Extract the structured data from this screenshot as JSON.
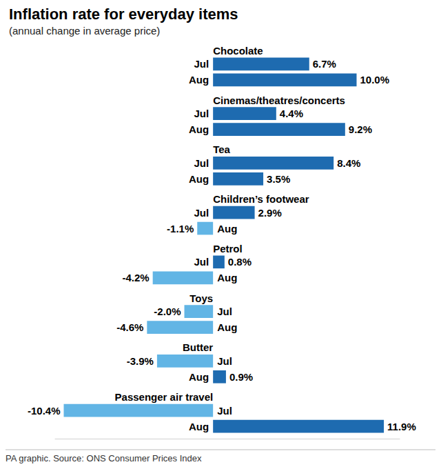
{
  "chart_data": {
    "type": "bar",
    "orientation": "horizontal",
    "title": "Inflation rate for everyday items",
    "subtitle": "(annual change in average price)",
    "source": "PA graphic. Source: ONS Consumer Prices Index",
    "categories": [
      "Chocolate",
      "Cinemas/theatres/concerts",
      "Tea",
      "Children’s footwear",
      "Petrol",
      "Toys",
      "Butter",
      "Passenger air travel"
    ],
    "series": [
      {
        "name": "Jul",
        "values": [
          6.7,
          4.4,
          8.4,
          2.9,
          0.8,
          -2.0,
          -3.9,
          -10.4
        ],
        "value_labels": [
          "6.7%",
          "4.4%",
          "8.4%",
          "2.9%",
          "0.8%",
          "-2.0%",
          "-3.9%",
          "-10.4%"
        ],
        "colors": [
          "#1e6bb0",
          "#1e6bb0",
          "#1e6bb0",
          "#1e6bb0",
          "#1e6bb0",
          "#62b5e5",
          "#62b5e5",
          "#62b5e5"
        ]
      },
      {
        "name": "Aug",
        "values": [
          10.0,
          9.2,
          3.5,
          -1.1,
          -4.2,
          -4.6,
          0.9,
          11.9
        ],
        "value_labels": [
          "10.0%",
          "9.2%",
          "3.5%",
          "-1.1%",
          "-4.2%",
          "-4.6%",
          "0.9%",
          "11.9%"
        ],
        "colors": [
          "#1e6bb0",
          "#1e6bb0",
          "#1e6bb0",
          "#62b5e5",
          "#62b5e5",
          "#62b5e5",
          "#1e6bb0",
          "#1e6bb0"
        ]
      }
    ],
    "xlim": [
      -11,
      13
    ],
    "data_labels": true,
    "tick_labels": false,
    "grid": false
  }
}
